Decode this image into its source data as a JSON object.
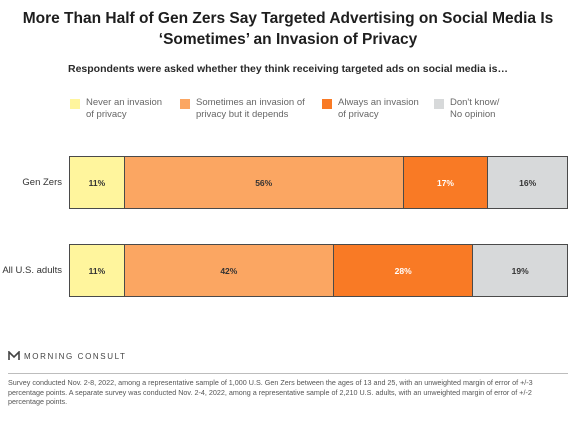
{
  "chart_data": {
    "type": "bar",
    "orientation": "horizontal-stacked",
    "title": "More Than Half of Gen Zers Say Targeted Advertising on Social Media Is ‘Sometimes’ an Invasion of Privacy",
    "subtitle": "Respondents were asked whether they think receiving targeted ads on social media is…",
    "categories": [
      "Gen Zers",
      "All U.S. adults"
    ],
    "series": [
      {
        "name": "Never an invasion\nof privacy",
        "values": [
          11,
          11
        ],
        "labels": [
          "11%",
          "11%"
        ],
        "color": "#fff59d",
        "text_color": "#333333"
      },
      {
        "name": "Sometimes an invasion of\nprivacy but it depends",
        "values": [
          56,
          42
        ],
        "labels": [
          "56%",
          "42%"
        ],
        "color": "#fba662",
        "text_color": "#333333"
      },
      {
        "name": "Always an invasion\nof privacy",
        "values": [
          17,
          28
        ],
        "labels": [
          "17%",
          "28%"
        ],
        "color": "#f97a25",
        "text_color": "#ffffff"
      },
      {
        "name": "Don't know/\nNo opinion",
        "values": [
          16,
          19
        ],
        "labels": [
          "16%",
          "19%"
        ],
        "color": "#d7d9da",
        "text_color": "#333333"
      }
    ],
    "xlim": [
      0,
      100
    ],
    "legend_position": "top",
    "grid": false
  },
  "brand": {
    "name": "MORNING CONSULT"
  },
  "footnote": "Survey conducted Nov. 2-8, 2022, among a representative sample of 1,000 U.S. Gen Zers between the ages of 13 and 25, with an unweighted margin of error of +/-3 percentage points. A separate survey was conducted Nov. 2-4, 2022, among a representative sample of 2,210 U.S. adults, with an unweighted margin of error of +/-2 percentage points."
}
